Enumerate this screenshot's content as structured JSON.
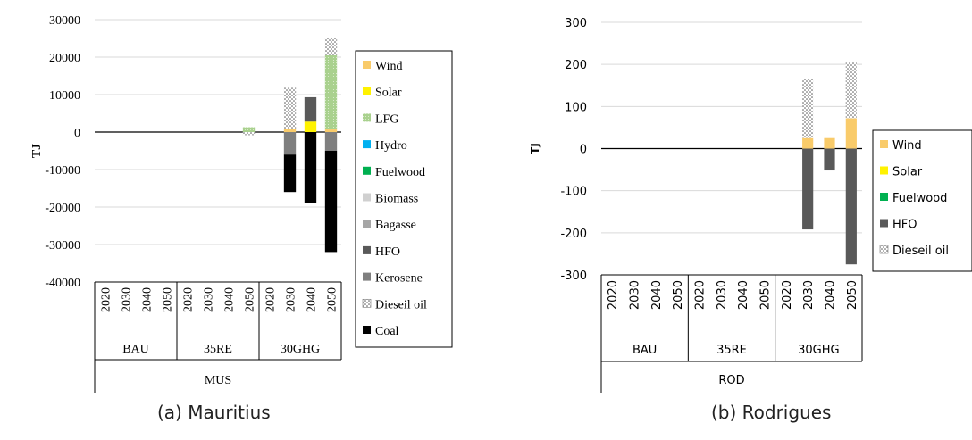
{
  "captions": {
    "a": "(a) Mauritius",
    "b": "(b) Rodrigues"
  },
  "chart_data": [
    {
      "type": "bar",
      "stacked": true,
      "title": "",
      "ylabel": "TJ",
      "ylim": [
        -40000,
        30000
      ],
      "yticks": [
        "30000",
        "20000",
        "10000",
        "0",
        "-10000",
        "-20000",
        "-30000",
        "-40000"
      ],
      "grid": true,
      "legend_position": "right",
      "x_years": [
        "2020",
        "2030",
        "2040",
        "2050",
        "2020",
        "2030",
        "2040",
        "2050",
        "2020",
        "2030",
        "2040",
        "2050"
      ],
      "scenarios": [
        "BAU",
        "35RE",
        "30GHG"
      ],
      "region": "MUS",
      "series": [
        {
          "name": "Wind",
          "color": "#F9CB6A",
          "values": [
            0,
            0,
            0,
            0,
            0,
            0,
            0,
            0,
            0,
            800,
            0,
            700
          ]
        },
        {
          "name": "Solar",
          "color": "#FFF200",
          "values": [
            0,
            0,
            0,
            0,
            0,
            0,
            0,
            0,
            0,
            0,
            2800,
            0
          ]
        },
        {
          "name": "LFG",
          "color": "#A9D18E",
          "values": [
            0,
            0,
            0,
            0,
            0,
            0,
            0,
            1300,
            0,
            0,
            0,
            19800
          ]
        },
        {
          "name": "Hydro",
          "color": "#00B0F0",
          "values": [
            0,
            0,
            0,
            0,
            0,
            0,
            0,
            0,
            0,
            0,
            0,
            0
          ]
        },
        {
          "name": "Fuelwood",
          "color": "#00B050",
          "values": [
            0,
            0,
            0,
            0,
            0,
            0,
            0,
            0,
            0,
            0,
            0,
            0
          ]
        },
        {
          "name": "Biomass",
          "color": "#D0D0D0",
          "values": [
            0,
            0,
            0,
            0,
            0,
            0,
            0,
            0,
            0,
            0,
            0,
            0
          ]
        },
        {
          "name": "Bagasse",
          "color": "#A6A6A6",
          "values": [
            0,
            0,
            0,
            0,
            0,
            0,
            0,
            0,
            0,
            0,
            0,
            0
          ]
        },
        {
          "name": "HFO",
          "color": "#595959",
          "values": [
            0,
            0,
            0,
            0,
            0,
            0,
            0,
            0,
            0,
            0,
            6500,
            0
          ]
        },
        {
          "name": "Kerosene",
          "color": "#7F7F7F",
          "values": [
            0,
            0,
            0,
            0,
            0,
            0,
            0,
            0,
            0,
            -6000,
            0,
            -5000
          ]
        },
        {
          "name": "Dieseil oil",
          "color": "#FFFFFF",
          "values": [
            0,
            0,
            0,
            0,
            0,
            0,
            0,
            -800,
            0,
            11000,
            0,
            4500
          ]
        },
        {
          "name": "Coal",
          "color": "#000000",
          "values": [
            0,
            0,
            0,
            0,
            0,
            0,
            0,
            0,
            0,
            -10000,
            -19000,
            -27000
          ]
        }
      ]
    },
    {
      "type": "bar",
      "stacked": true,
      "title": "",
      "ylabel": "TJ",
      "ylim": [
        -300,
        300
      ],
      "yticks": [
        "300",
        "200",
        "100",
        "0",
        "-100",
        "-200",
        "-300"
      ],
      "grid": true,
      "legend_position": "right",
      "x_years": [
        "2020",
        "2030",
        "2040",
        "2050",
        "2020",
        "2030",
        "2040",
        "2050",
        "2020",
        "2030",
        "2040",
        "2050"
      ],
      "scenarios": [
        "BAU",
        "35RE",
        "30GHG"
      ],
      "region": "ROD",
      "series": [
        {
          "name": "Wind",
          "color": "#F9CB6A",
          "values": [
            0,
            0,
            0,
            0,
            0,
            0,
            0,
            0,
            0,
            25,
            25,
            72
          ]
        },
        {
          "name": "Solar",
          "color": "#FFF200",
          "values": [
            0,
            0,
            0,
            0,
            0,
            0,
            0,
            0,
            0,
            0,
            0,
            0
          ]
        },
        {
          "name": "Fuelwood",
          "color": "#00B050",
          "values": [
            0,
            0,
            0,
            0,
            0,
            0,
            0,
            0,
            0,
            0,
            0,
            0
          ]
        },
        {
          "name": "HFO",
          "color": "#595959",
          "values": [
            0,
            0,
            0,
            0,
            0,
            0,
            0,
            0,
            0,
            -192,
            -52,
            -275
          ]
        },
        {
          "name": "Dieseil oil",
          "color": "#FFFFFF",
          "values": [
            0,
            0,
            0,
            0,
            0,
            0,
            0,
            0,
            0,
            140,
            0,
            133
          ]
        }
      ]
    }
  ]
}
